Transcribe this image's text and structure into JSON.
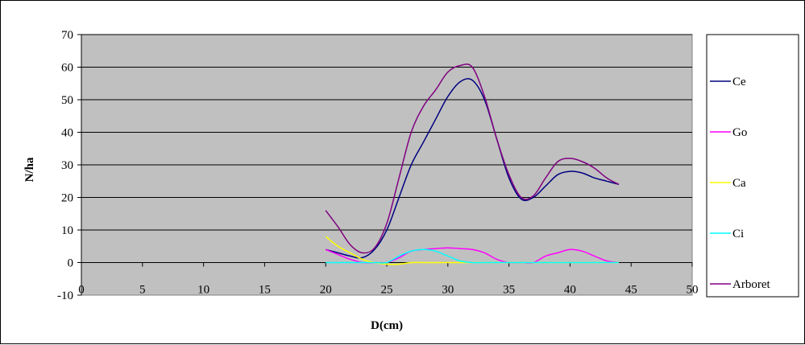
{
  "chart_data": {
    "type": "line",
    "title": "",
    "xlabel": "D(cm)",
    "ylabel": "N/ha",
    "xlim": [
      0,
      50
    ],
    "ylim": [
      -10,
      70
    ],
    "xticks": [
      "0",
      "5",
      "10",
      "15",
      "20",
      "25",
      "30",
      "35",
      "40",
      "45",
      "50"
    ],
    "yticks": [
      "-10",
      "0",
      "10",
      "20",
      "30",
      "40",
      "50",
      "60",
      "70"
    ],
    "grid": "horizontal",
    "plot_background": "#c0c0c0",
    "legend_position": "right",
    "series": [
      {
        "name": "Ce",
        "color": "#000080",
        "x": [
          20,
          21,
          22,
          23,
          24,
          25,
          26,
          27,
          28,
          29,
          30,
          31,
          32,
          33,
          34,
          35,
          36,
          37,
          38,
          39,
          40,
          41,
          42,
          43,
          44
        ],
        "y": [
          4,
          3,
          2,
          1.5,
          4,
          10,
          20,
          30,
          37,
          44,
          51,
          55.5,
          56,
          50,
          38,
          26,
          19.5,
          20,
          23.5,
          27,
          28,
          27.5,
          26,
          25,
          24
        ]
      },
      {
        "name": "Go",
        "color": "#ff00ff",
        "x": [
          20,
          21,
          22,
          23,
          24,
          25,
          26,
          27,
          28,
          29,
          30,
          31,
          32,
          33,
          34,
          35,
          36,
          37,
          38,
          39,
          40,
          41,
          42,
          43,
          44
        ],
        "y": [
          4,
          2.5,
          1,
          0,
          0,
          0,
          1.5,
          3.5,
          4,
          4.3,
          4.5,
          4.3,
          4,
          3,
          1,
          0,
          0,
          0,
          2,
          3,
          4,
          3.5,
          2,
          0.5,
          0
        ]
      },
      {
        "name": "Ca",
        "color": "#ffff00",
        "x": [
          20,
          21,
          22,
          23,
          24,
          25,
          26,
          27,
          28,
          29,
          30,
          31,
          32,
          33,
          34,
          35,
          36,
          37,
          38,
          39,
          40,
          41,
          42,
          43,
          44
        ],
        "y": [
          8,
          5,
          3,
          1,
          0,
          -0.5,
          -0.5,
          0,
          0,
          0,
          0,
          0,
          0,
          0,
          0,
          0,
          0,
          0,
          0,
          0,
          0,
          0,
          0,
          0,
          0
        ]
      },
      {
        "name": "Ci",
        "color": "#00ffff",
        "x": [
          20,
          21,
          22,
          23,
          24,
          25,
          26,
          27,
          28,
          29,
          30,
          31,
          32,
          33,
          34,
          35,
          36,
          37,
          38,
          39,
          40,
          41,
          42,
          43,
          44
        ],
        "y": [
          0,
          0,
          0,
          0,
          0,
          0,
          2,
          3.5,
          4,
          3.5,
          2,
          0.5,
          0,
          0,
          0,
          0,
          0,
          0,
          0,
          0,
          0,
          0,
          0,
          0,
          0
        ]
      },
      {
        "name": "Arboret",
        "color": "#800080",
        "x": [
          20,
          21,
          22,
          23,
          24,
          25,
          26,
          27,
          28,
          29,
          30,
          31,
          32,
          33,
          34,
          35,
          36,
          37,
          38,
          39,
          40,
          41,
          42,
          43,
          44
        ],
        "y": [
          16,
          11,
          5.5,
          3,
          4.5,
          12,
          26,
          40,
          48,
          53,
          58.5,
          60.5,
          60,
          51,
          38,
          27,
          20,
          20.5,
          26,
          31,
          32,
          31,
          29,
          26,
          24
        ]
      }
    ]
  }
}
